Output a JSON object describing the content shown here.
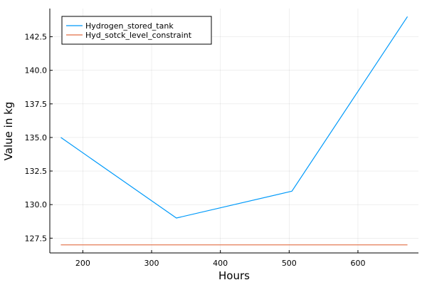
{
  "chart_data": {
    "type": "line",
    "title": "",
    "xlabel": "Hours",
    "ylabel": "Value in kg",
    "xlim": [
      152,
      688
    ],
    "ylim": [
      126.4,
      144.6
    ],
    "x_ticks": [
      200,
      300,
      400,
      500,
      600
    ],
    "y_ticks": [
      127.5,
      130.0,
      132.5,
      135.0,
      137.5,
      140.0,
      142.5
    ],
    "x_tick_labels": [
      "200",
      "300",
      "400",
      "500",
      "600"
    ],
    "y_tick_labels": [
      "127.5",
      "130.0",
      "132.5",
      "135.0",
      "137.5",
      "140.0",
      "142.5"
    ],
    "grid": true,
    "legend_position": "top-left",
    "series": [
      {
        "name": "Hydrogen_stored_tank",
        "color": "#009AFA",
        "x": [
          168,
          336,
          504,
          672
        ],
        "y": [
          135,
          129,
          131,
          144
        ]
      },
      {
        "name": "Hyd_sotck_level_constraint",
        "color": "#E26F46",
        "x": [
          168,
          336,
          504,
          672
        ],
        "y": [
          127,
          127,
          127,
          127
        ]
      }
    ]
  }
}
